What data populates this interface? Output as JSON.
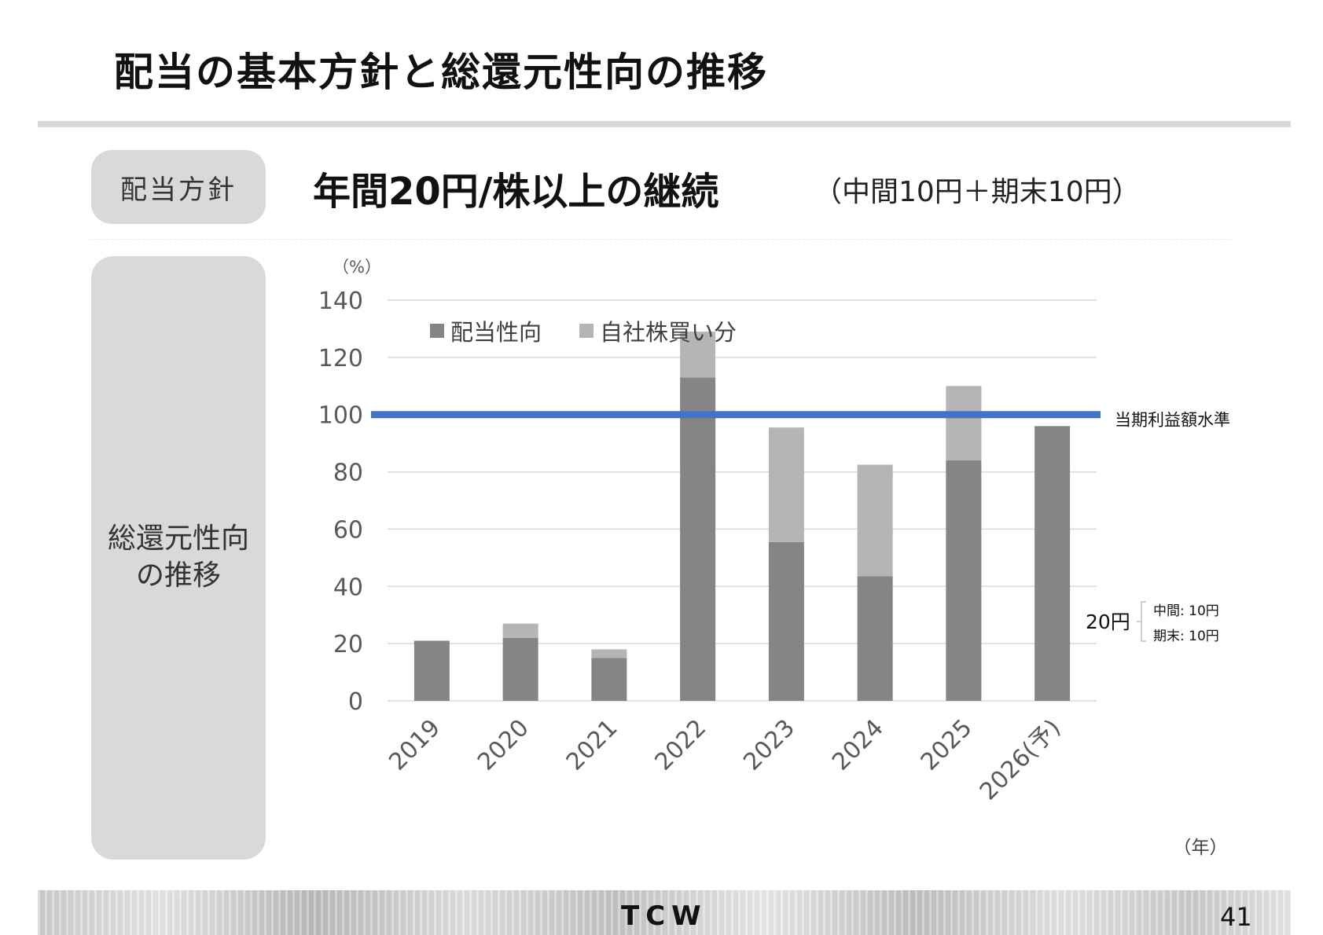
{
  "slide": {
    "title": "配当の基本方針と総還元性向の推移",
    "page_number": "41",
    "logo_text": "TCW"
  },
  "policy": {
    "label": "配当方針",
    "main_text": "年間20円/株以上の継続",
    "sub_text": "（中間10円＋期末10円）"
  },
  "trend": {
    "label_line1": "総還元性向",
    "label_line2": "の推移"
  },
  "chart_data": {
    "type": "bar",
    "stacked": true,
    "categories": [
      "2019",
      "2020",
      "2021",
      "2022",
      "2023",
      "2024",
      "2025",
      "2026(予)"
    ],
    "series": [
      {
        "name": "配当性向",
        "values": [
          21,
          22,
          15,
          113,
          55.5,
          43.5,
          84,
          96
        ],
        "color": "#858585"
      },
      {
        "name": "自社株買い分",
        "values": [
          0,
          5,
          3,
          16,
          40,
          39,
          26,
          0
        ],
        "color": "#b5b5b5"
      }
    ],
    "y_unit_label": "（%）",
    "x_unit_label": "（年）",
    "ylim": [
      0,
      140
    ],
    "yticks": [
      0,
      20,
      40,
      60,
      80,
      100,
      120,
      140
    ],
    "grid": true,
    "legend_position": "top-left",
    "reference_line": {
      "value": 100,
      "label": "当期利益額水準",
      "color": "#4472c4"
    },
    "annotation": {
      "total": "20円",
      "interim": "中間: 10円",
      "year_end": "期末: 10円"
    },
    "colors": {
      "grid": "#d9d9d9",
      "tick_text": "#595959"
    }
  }
}
